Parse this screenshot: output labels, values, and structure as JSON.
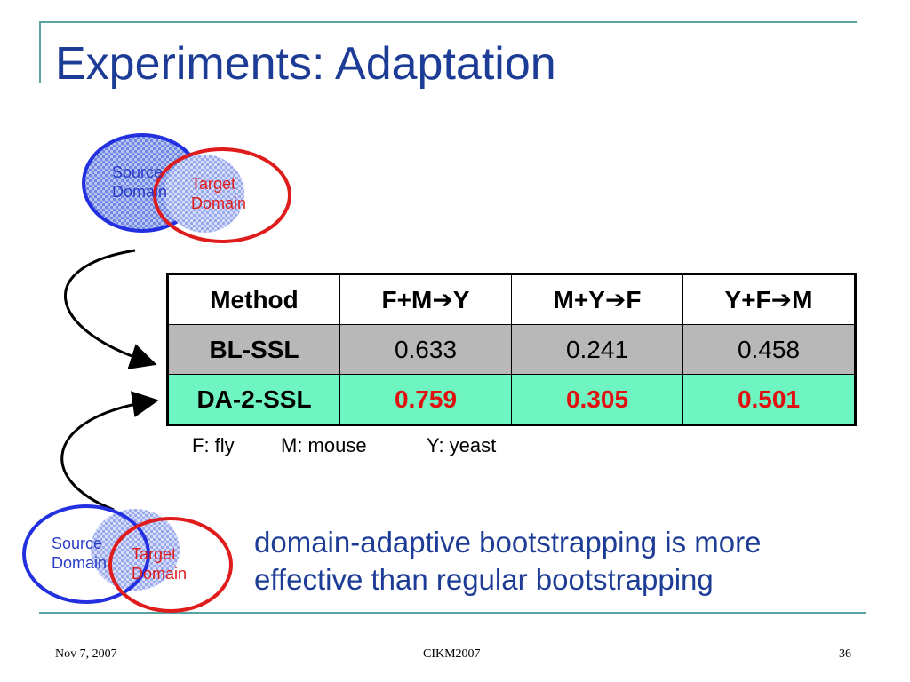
{
  "title": "Experiments: Adaptation",
  "venn_top": {
    "source_label": "Source\nDomain",
    "target_label": "Target\nDomain"
  },
  "venn_bottom": {
    "source_label": "Source\nDomain",
    "target_label": "Target\nDomain"
  },
  "table": {
    "headers": [
      {
        "left": "Method",
        "arrow": "",
        "right": ""
      },
      {
        "left": "F+M",
        "arrow": "➔",
        "right": "Y"
      },
      {
        "left": "M+Y",
        "arrow": "➔",
        "right": "F"
      },
      {
        "left": "Y+F",
        "arrow": "➔",
        "right": "M"
      }
    ],
    "rows": [
      {
        "method": "BL-SSL",
        "values": [
          "0.633",
          "0.241",
          "0.458"
        ]
      },
      {
        "method": "DA-2-SSL",
        "values": [
          "0.759",
          "0.305",
          "0.501"
        ]
      }
    ]
  },
  "legend": [
    "F: fly",
    "M: mouse",
    "Y: yeast"
  ],
  "conclusion": "domain-adaptive bootstrapping is more effective than regular bootstrapping",
  "footer": {
    "date": "Nov 7, 2007",
    "conference": "CIKM2007",
    "page": "36"
  },
  "colors": {
    "title": "#1c3c96",
    "source": "#2a3cc8",
    "target": "#e01b1b",
    "highlight_row": "#6ef5c2",
    "baseline_row": "#b8b8b8"
  }
}
